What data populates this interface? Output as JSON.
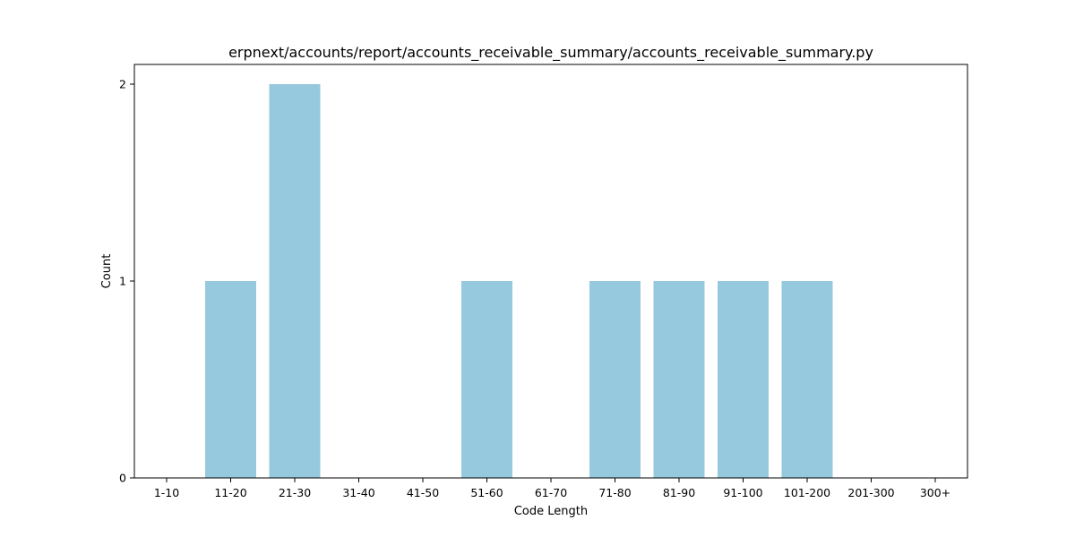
{
  "chart_data": {
    "type": "bar",
    "title": "erpnext/accounts/report/accounts_receivable_summary/accounts_receivable_summary.py",
    "xlabel": "Code Length",
    "ylabel": "Count",
    "categories": [
      "1-10",
      "11-20",
      "21-30",
      "31-40",
      "41-50",
      "51-60",
      "61-70",
      "71-80",
      "81-90",
      "91-100",
      "101-200",
      "201-300",
      "300+"
    ],
    "values": [
      0,
      1,
      2,
      0,
      0,
      1,
      0,
      1,
      1,
      1,
      1,
      0,
      0
    ],
    "ylim": [
      0,
      2.1
    ],
    "yticks": [
      0,
      1,
      2
    ],
    "bar_color": "#96c9dd",
    "grid": false,
    "legend": "none"
  }
}
